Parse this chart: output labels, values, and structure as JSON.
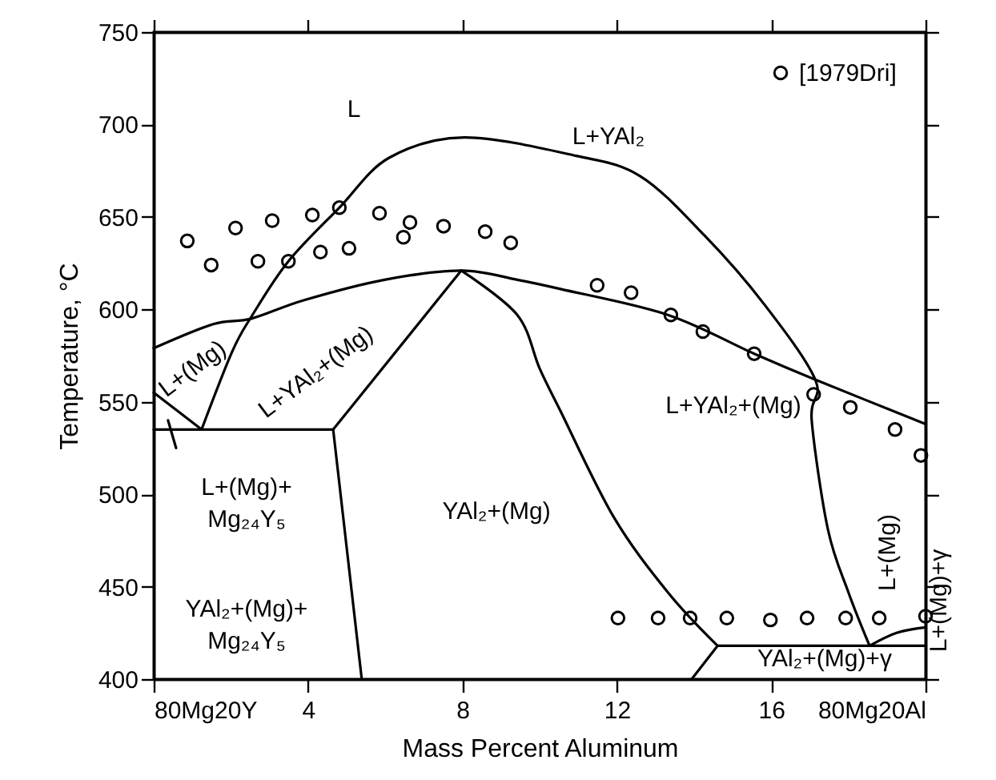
{
  "chart_data": {
    "type": "line",
    "xlabel": "Mass Percent  Aluminum",
    "ylabel": "Temperature, °C",
    "xlim": [
      0,
      20
    ],
    "ylim": [
      400,
      750
    ],
    "xticks": [
      {
        "value": 0,
        "label": "80Mg20Y"
      },
      4,
      8,
      12,
      16,
      {
        "value": 20,
        "label": "80Mg20Al"
      }
    ],
    "yticks": [
      400,
      450,
      500,
      550,
      600,
      650,
      700,
      750
    ],
    "legend": "top right",
    "series": [
      {
        "color": "#000000",
        "x": [
          1.24,
          2.03,
          2.53,
          3.49,
          4.81,
          6.1,
          8.05,
          10.95,
          12.61,
          14.27,
          15.81,
          17.14,
          17.05,
          17.47,
          18.0,
          18.55
        ],
        "values": [
          535,
          577,
          596,
          626,
          655,
          682,
          693,
          683,
          672,
          640,
          603,
          562,
          540,
          481,
          447,
          418
        ]
      },
      {
        "color": "#000000",
        "x": [
          0,
          1.54,
          2.53,
          3.9,
          5.98,
          7.97,
          9.42,
          10.54,
          13.32,
          15.56,
          17.14,
          20
        ],
        "values": [
          579,
          592,
          595,
          605,
          616,
          621,
          616,
          611,
          597,
          576,
          562,
          538
        ]
      },
      {
        "color": "#000000",
        "x": [
          0,
          1.24
        ],
        "values": [
          555,
          535
        ]
      },
      {
        "color": "#000000",
        "x": [
          0.37,
          0.58
        ],
        "values": [
          540,
          525
        ]
      },
      {
        "color": "#000000",
        "x": [
          0,
          4.65
        ],
        "values": [
          535,
          535
        ]
      },
      {
        "color": "#000000",
        "x": [
          4.65,
          7.97
        ],
        "values": [
          535,
          621
        ]
      },
      {
        "color": "#000000",
        "x": [
          4.65,
          5.39
        ],
        "values": [
          535,
          400
        ]
      },
      {
        "color": "#000000",
        "x": [
          7.97,
          9.42,
          10.0,
          10.54,
          11.91,
          13.32,
          14.61
        ],
        "values": [
          621,
          597,
          568,
          545,
          488,
          447,
          418
        ]
      },
      {
        "color": "#000000",
        "x": [
          14.61,
          20
        ],
        "values": [
          418,
          418
        ]
      },
      {
        "color": "#000000",
        "x": [
          14.61,
          13.94
        ],
        "values": [
          418,
          400
        ]
      },
      {
        "color": "#000000",
        "x": [
          18.55,
          19.25,
          20
        ],
        "values": [
          418,
          425,
          428
        ]
      },
      {
        "type": "scatter",
        "name": "[1979Dri]",
        "color": "#000000",
        "marker": "circle",
        "x": [
          0.87,
          1.49,
          2.12,
          3.07,
          4.11,
          4.81,
          5.85,
          6.64,
          6.47,
          7.51,
          8.59,
          9.25,
          2.7,
          3.49,
          4.32,
          5.06,
          11.49,
          12.37,
          13.4,
          14.23,
          15.56,
          17.1,
          18.05,
          19.21,
          19.88,
          12.03,
          13.07,
          13.9,
          14.85,
          15.98,
          16.93,
          17.93,
          18.8,
          20.0
        ],
        "values": [
          637,
          624,
          644,
          648,
          651,
          655,
          652,
          647,
          639,
          645,
          642,
          636,
          626,
          626,
          631,
          633,
          613,
          609,
          597,
          588,
          576,
          554,
          547,
          535,
          521,
          433,
          433,
          433,
          433,
          432,
          433,
          433,
          433,
          434
        ]
      }
    ],
    "annotations": [
      "L",
      "L+YAl₂",
      "L+(Mg)",
      "L+YAl₂+(Mg)",
      "L+(Mg)+\nMg₂₄Y₅",
      "YAl₂+(Mg)+\nMg₂₄Y₅",
      "YAl₂+(Mg)",
      "L+YAl₂+(Mg)",
      "L+(Mg)",
      "L+(Mg)+γ",
      "YAl₂+(Mg)+γ"
    ]
  }
}
